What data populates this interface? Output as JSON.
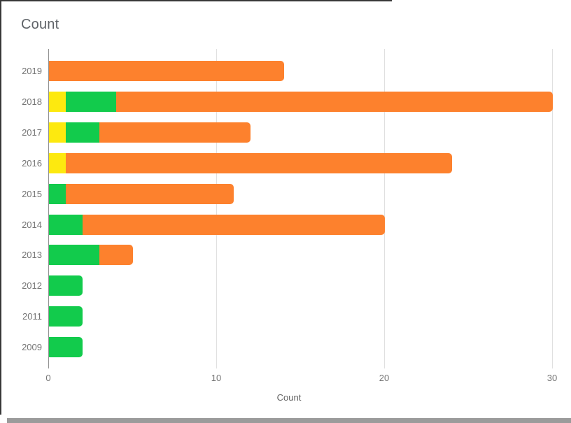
{
  "title": "Count",
  "colors": {
    "yellow": "#fde90f",
    "green": "#12cb4c",
    "orange": "#fd812d",
    "gridline": "#e0e0e0",
    "baseline": "#8f8f8f",
    "label_text": "#757575",
    "title_text": "#5f6368",
    "border_dark": "#383838",
    "bottom_strip": "#9b9b9b"
  },
  "chart_data": {
    "type": "bar",
    "orientation": "horizontal",
    "stacked": true,
    "title": "Count",
    "xlabel": "Count",
    "categories": [
      "2019",
      "2018",
      "2017",
      "2016",
      "2015",
      "2014",
      "2013",
      "2012",
      "2011",
      "2009"
    ],
    "series": [
      {
        "name": "yellow",
        "color": "#fde90f",
        "values": [
          0,
          1,
          1,
          1,
          0,
          0,
          0,
          0,
          0,
          0
        ]
      },
      {
        "name": "green",
        "color": "#12cb4c",
        "values": [
          0,
          3,
          2,
          0,
          1,
          2,
          3,
          2,
          2,
          2
        ]
      },
      {
        "name": "orange",
        "color": "#fd812d",
        "values": [
          14,
          26,
          9,
          23,
          10,
          18,
          2,
          0,
          0,
          0
        ]
      }
    ],
    "totals": [
      14,
      30,
      12,
      24,
      11,
      20,
      5,
      2,
      2,
      2
    ],
    "xlim": [
      0,
      30
    ],
    "x_ticks": [
      0,
      10,
      20,
      30
    ],
    "x_tick_labels": [
      "0",
      "10",
      "20",
      "30"
    ],
    "grid": true,
    "legend": "none"
  }
}
